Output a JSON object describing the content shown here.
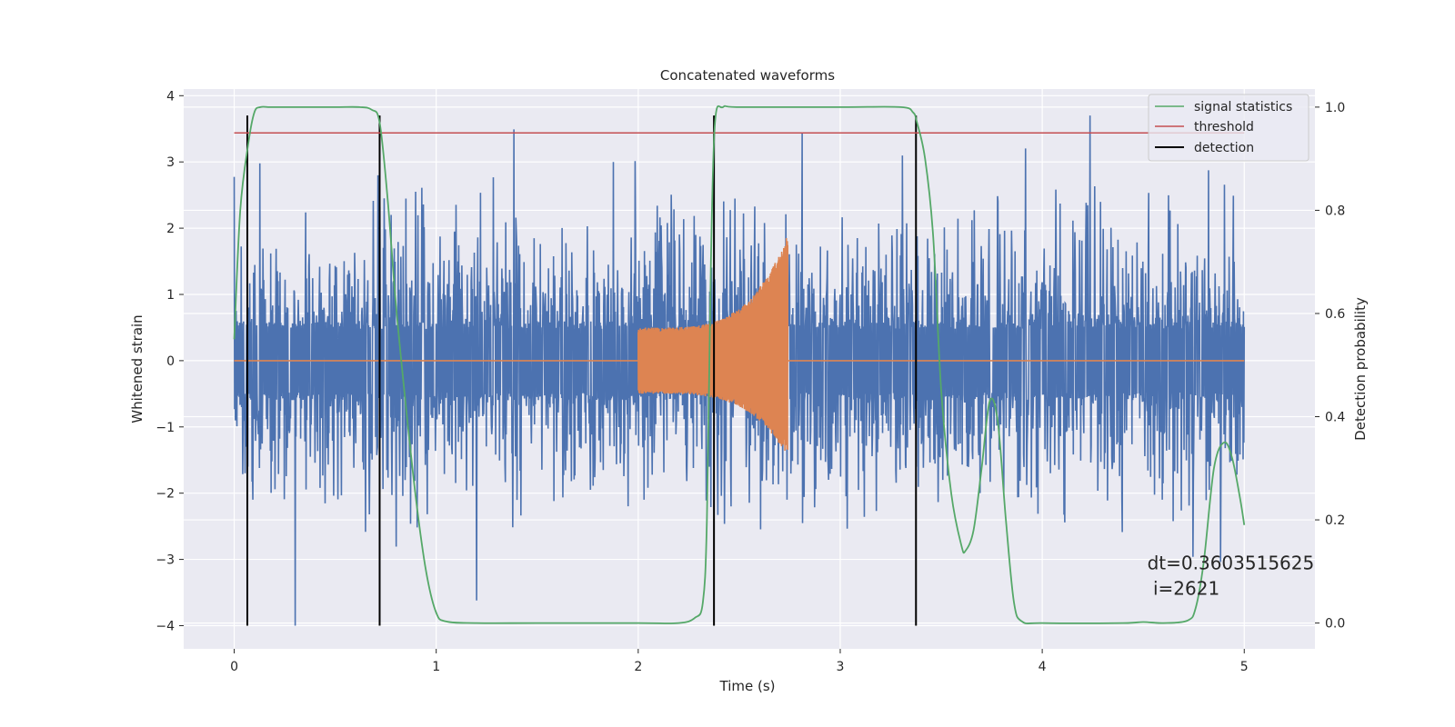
{
  "chart_data": {
    "type": "line",
    "title": "Concatenated waveforms",
    "xlabel": "Time (s)",
    "ylabel": "Whitened strain",
    "ylabel_right": "Detection probability",
    "xlim": [
      -0.25,
      5.35
    ],
    "ylim": [
      -4.35,
      4.1
    ],
    "ylim_right": [
      -0.05,
      1.035
    ],
    "x_ticks": [
      0,
      1,
      2,
      3,
      4,
      5
    ],
    "y_ticks": [
      -4,
      -3,
      -2,
      -1,
      0,
      1,
      2,
      3,
      4
    ],
    "y_ticks_right": [
      0.0,
      0.2,
      0.4,
      0.6,
      0.8,
      1.0
    ],
    "y_tick_labels_right": [
      "0.0",
      "0.2",
      "0.4",
      "0.6",
      "0.8",
      "1.0"
    ],
    "grid": true,
    "legend_position": "top-right",
    "colors": {
      "background": "#eaeaf2",
      "strain": "#4c72b0",
      "injection": "#dd8452",
      "signal": "#55a868",
      "threshold": "#c44e52",
      "detection": "#000000"
    },
    "strain_noise": {
      "x_range": [
        0,
        5
      ],
      "core_amplitude": 0.6,
      "peak_max": 3.7,
      "peak_min": -4.0
    },
    "injection": {
      "x_start": 2.0,
      "x_end": 2.74,
      "start_amplitude": 0.5,
      "end_amplitude_pos": 1.9,
      "end_amplitude_neg": -1.45
    },
    "series": [
      {
        "name": "signal statistics",
        "axis": "right",
        "x": [
          0.0,
          0.03,
          0.07,
          0.1,
          0.13,
          0.18,
          0.3,
          0.5,
          0.62,
          0.68,
          0.72,
          0.76,
          0.8,
          0.85,
          0.9,
          0.95,
          1.0,
          1.05,
          1.2,
          1.5,
          2.0,
          2.2,
          2.28,
          2.32,
          2.34,
          2.36,
          2.38,
          2.42,
          2.5,
          3.0,
          3.3,
          3.36,
          3.38,
          3.42,
          3.46,
          3.5,
          3.55,
          3.6,
          3.62,
          3.66,
          3.7,
          3.74,
          3.78,
          3.82,
          3.86,
          3.9,
          4.0,
          4.4,
          4.5,
          4.6,
          4.72,
          4.76,
          4.8,
          4.85,
          4.9,
          4.94,
          4.98,
          5.0
        ],
        "y": [
          0.55,
          0.8,
          0.93,
          0.99,
          1.0,
          1.0,
          1.0,
          1.0,
          1.0,
          0.995,
          0.97,
          0.82,
          0.62,
          0.42,
          0.24,
          0.1,
          0.02,
          0.003,
          0.0,
          0.0,
          0.0,
          0.0,
          0.01,
          0.04,
          0.2,
          0.7,
          0.97,
          1.0,
          1.0,
          1.0,
          1.0,
          0.99,
          0.97,
          0.9,
          0.75,
          0.45,
          0.25,
          0.15,
          0.14,
          0.18,
          0.3,
          0.43,
          0.39,
          0.2,
          0.04,
          0.003,
          0.0,
          0.0,
          0.002,
          0.0,
          0.005,
          0.03,
          0.12,
          0.3,
          0.35,
          0.32,
          0.24,
          0.19
        ]
      },
      {
        "name": "threshold",
        "axis": "right",
        "x": [
          0,
          5
        ],
        "y": [
          0.95,
          0.95
        ]
      },
      {
        "name": "detection",
        "axis": "left",
        "x": [
          0.065,
          0.72,
          2.375,
          3.375
        ],
        "y_range": [
          -4.0,
          3.7
        ]
      }
    ],
    "annotation": {
      "line1": "dt=0.3603515625",
      "line2": " i=2621",
      "x": 4.52,
      "y": -3.15
    }
  }
}
